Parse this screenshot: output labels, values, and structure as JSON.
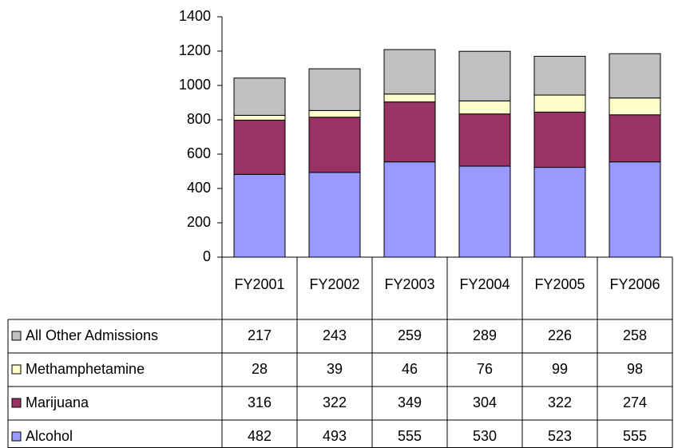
{
  "chart_data": {
    "type": "bar",
    "stacked": true,
    "categories": [
      "FY2001",
      "FY2002",
      "FY2003",
      "FY2004",
      "FY2005",
      "FY2006"
    ],
    "series": [
      {
        "name": "Alcohol",
        "color": "#9999ff",
        "values": [
          482,
          493,
          555,
          530,
          523,
          555
        ]
      },
      {
        "name": "Marijuana",
        "color": "#993366",
        "values": [
          316,
          322,
          349,
          304,
          322,
          274
        ]
      },
      {
        "name": "Methamphetamine",
        "color": "#ffffcc",
        "values": [
          28,
          39,
          46,
          76,
          99,
          98
        ]
      },
      {
        "name": "All Other Admissions",
        "color": "#c0c0c0",
        "values": [
          217,
          243,
          259,
          289,
          226,
          258
        ]
      }
    ],
    "ylim": [
      0,
      1400
    ],
    "yticks": [
      0,
      200,
      400,
      600,
      800,
      1000,
      1200,
      1400
    ],
    "grid": false
  }
}
